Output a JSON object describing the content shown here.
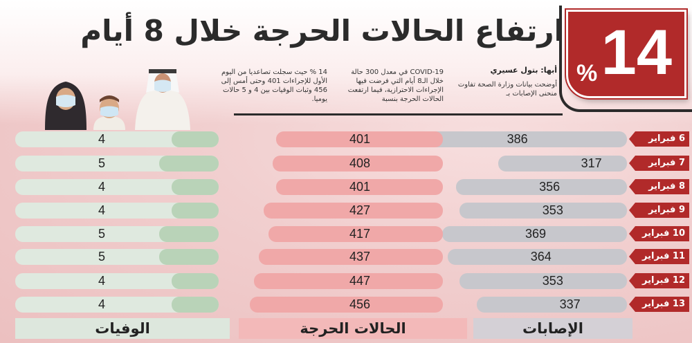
{
  "title": "ارتفاع الحالات الحرجة خلال 8 أيام",
  "percent": {
    "value": "14",
    "sign": "%"
  },
  "author": "أبها: بتول عسيري",
  "paragraphs": {
    "col1": "أوضحت بيانات وزارة الصحة تفاوت منحنى الإصابات بـ",
    "col2": "COVID-19 في معدل 300 حالة خلال الـ8 أيام التي فرضت فيها الإجراءات الاحترازية، فيما ارتفعت الحالات الحرجة بنسبة",
    "col3": "14 % حيث سجلت تصاعديا من اليوم الأول للإجراءات 401 وحتى أمس إلى 456 وثبات الوفيات بين 4 و 5 حالات يوميا."
  },
  "headers": {
    "injuries": "الإصابات",
    "critical": "الحالات الحرجة",
    "deaths": "الوفيات"
  },
  "rows": [
    {
      "date": "6 فبراير",
      "injuries": "386",
      "critical": "401",
      "deaths": "4"
    },
    {
      "date": "7 فبراير",
      "injuries": "317",
      "critical": "408",
      "deaths": "5"
    },
    {
      "date": "8 فبراير",
      "injuries": "356",
      "critical": "401",
      "deaths": "4"
    },
    {
      "date": "9 فبراير",
      "injuries": "353",
      "critical": "427",
      "deaths": "4"
    },
    {
      "date": "10 فبراير",
      "injuries": "369",
      "critical": "417",
      "deaths": "5"
    },
    {
      "date": "11 فبراير",
      "injuries": "364",
      "critical": "437",
      "deaths": "5"
    },
    {
      "date": "12 فبراير",
      "injuries": "353",
      "critical": "447",
      "deaths": "4"
    },
    {
      "date": "13 فبراير",
      "injuries": "337",
      "critical": "456",
      "deaths": "4"
    }
  ],
  "colors": {
    "accent": "#b12a2a",
    "injuries_bar": "#c7c7cc",
    "critical_bar": "#f0a8a8",
    "deaths_bar": "#b9d3b8"
  }
}
